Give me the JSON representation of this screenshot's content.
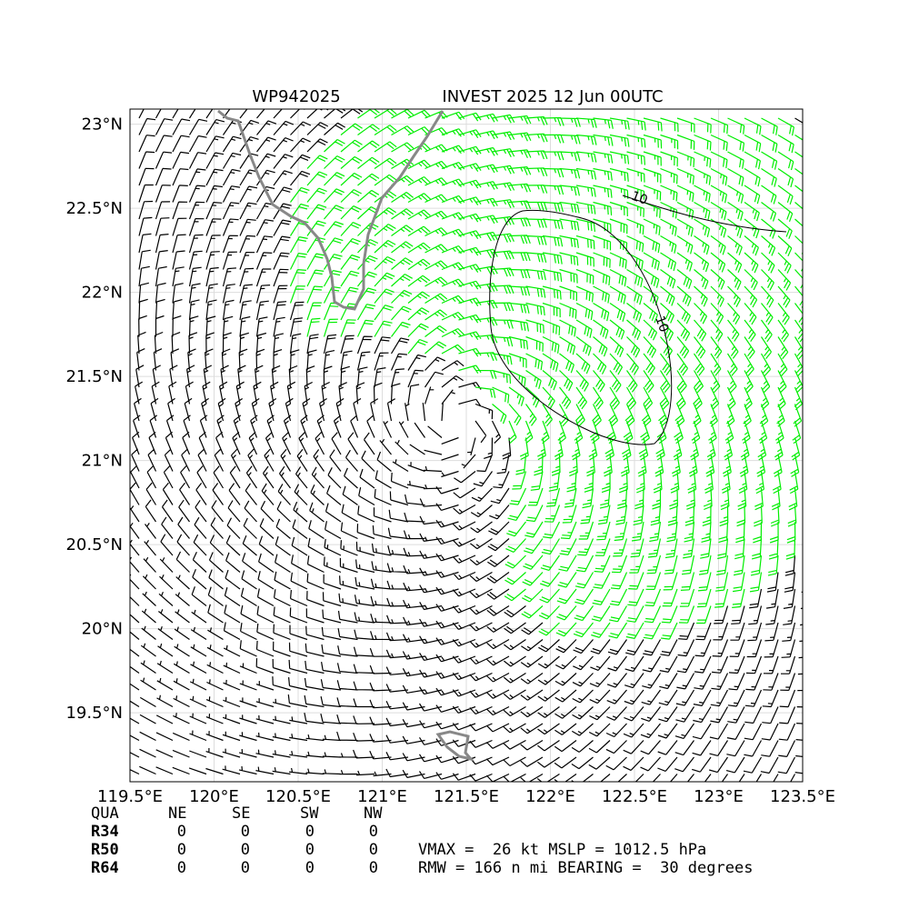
{
  "chart_data": {
    "type": "barb",
    "title_left": "WP942025",
    "title_right": "INVEST 2025 12 Jun 00UTC",
    "xlim": [
      119.5,
      123.5
    ],
    "ylim": [
      19.09,
      23.09
    ],
    "xticks": [
      {
        "value": 119.5,
        "label": "119.5°E"
      },
      {
        "value": 120,
        "label": "120°E"
      },
      {
        "value": 120.5,
        "label": "120.5°E"
      },
      {
        "value": 121,
        "label": "121°E"
      },
      {
        "value": 121.5,
        "label": "121.5°E"
      },
      {
        "value": 122,
        "label": "122°E"
      },
      {
        "value": 122.5,
        "label": "122.5°E"
      },
      {
        "value": 123,
        "label": "123°E"
      },
      {
        "value": 123.5,
        "label": "123.5°E"
      }
    ],
    "yticks": [
      {
        "value": 19.5,
        "label": "19.5°N"
      },
      {
        "value": 20,
        "label": "20°N"
      },
      {
        "value": 20.5,
        "label": "20.5°N"
      },
      {
        "value": 21,
        "label": "21°N"
      },
      {
        "value": 21.5,
        "label": "21.5°N"
      },
      {
        "value": 22,
        "label": "22°N"
      },
      {
        "value": 22.5,
        "label": "22.5°N"
      },
      {
        "value": 23,
        "label": "23°N"
      }
    ],
    "grid": true,
    "barb_color": "#000000",
    "strong_color": "#00ee00",
    "contour_labels": [
      "10",
      "10"
    ]
  },
  "table": {
    "header": [
      "QUA",
      "NE",
      "SE",
      "SW",
      "NW"
    ],
    "rows": [
      [
        "R34",
        0,
        0,
        0,
        0
      ],
      [
        "R50",
        0,
        0,
        0,
        0
      ],
      [
        "R64",
        0,
        0,
        0,
        0
      ]
    ],
    "info": [
      "VMAX =  26 kt MSLP = 1012.5 hPa",
      "RMW = 166 n mi BEARING =  30 degrees"
    ]
  }
}
